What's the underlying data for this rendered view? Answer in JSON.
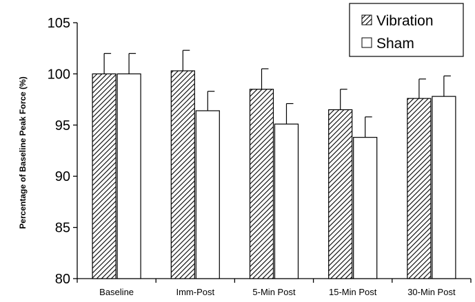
{
  "chart_data": {
    "type": "bar",
    "ylabel": "Percentage of Baseline Peak Force (%)",
    "xlabel": "",
    "ylim": [
      80,
      105
    ],
    "yticks": [
      80,
      85,
      90,
      95,
      100,
      105
    ],
    "categories": [
      "Baseline",
      "Imm-Post",
      "5-Min Post",
      "15-Min Post",
      "30-Min Post"
    ],
    "series": [
      {
        "name": "Vibration",
        "values": [
          100.0,
          100.3,
          98.5,
          96.5,
          97.6
        ],
        "error": [
          2.0,
          2.0,
          2.0,
          2.0,
          1.9
        ],
        "fill": "hatched"
      },
      {
        "name": "Sham",
        "values": [
          100.0,
          96.4,
          95.1,
          93.8,
          97.8
        ],
        "error": [
          2.0,
          1.9,
          2.0,
          2.0,
          2.0
        ],
        "fill": "white"
      }
    ],
    "legend_position": "top-right",
    "error_bars": "upper",
    "grid": false
  },
  "colors": {
    "bar_stroke": "#000000",
    "hatch": "#000000",
    "sham_fill": "#ffffff"
  }
}
